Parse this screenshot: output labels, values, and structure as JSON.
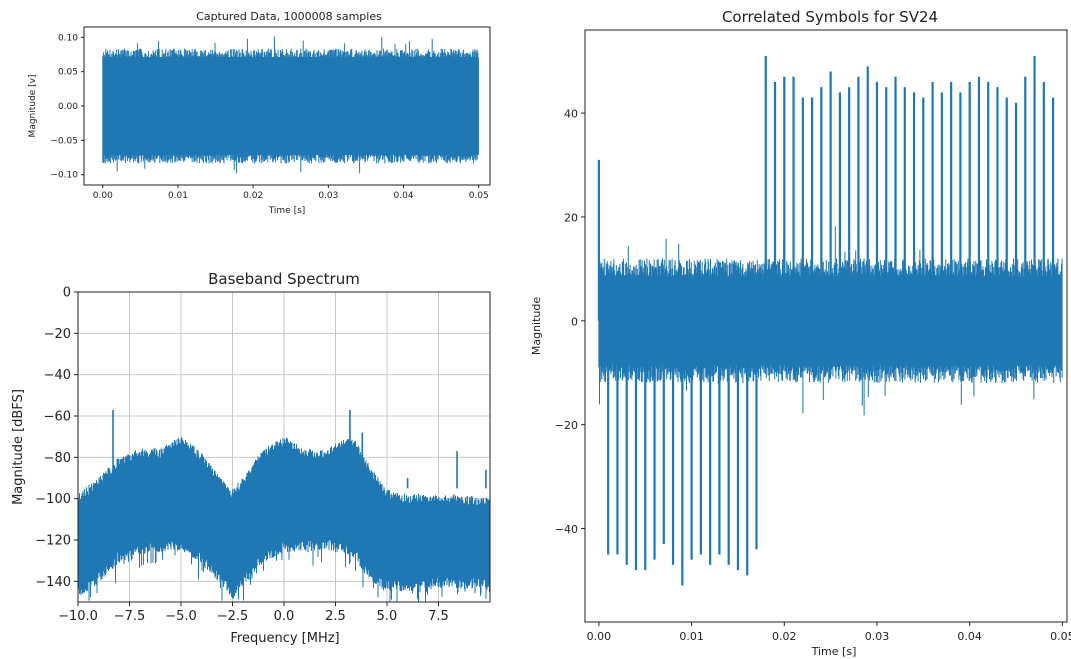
{
  "chart_data": [
    {
      "id": "captured",
      "type": "line",
      "title": "Captured Data, 1000008 samples",
      "xlabel": "Time [s]",
      "ylabel": "Magnitude [v]",
      "xlim": [
        -0.0025,
        0.0515
      ],
      "ylim": [
        -0.115,
        0.115
      ],
      "xticks": [
        0.0,
        0.01,
        0.02,
        0.03,
        0.04,
        0.05
      ],
      "xtick_labels": [
        "0.00",
        "0.01",
        "0.02",
        "0.03",
        "0.04",
        "0.05"
      ],
      "yticks": [
        0.1,
        0.05,
        0.0,
        -0.05,
        -0.1
      ],
      "ytick_labels": [
        "0.10",
        "0.05",
        "0.00",
        "−0.05",
        "−0.10"
      ],
      "grid": false,
      "color": "#1f77b4",
      "envelope": {
        "x_range": [
          0.0,
          0.05
        ],
        "typical_abs": 0.075,
        "peak_abs": 0.102
      }
    },
    {
      "id": "spectrum",
      "type": "line",
      "title": "Baseband Spectrum",
      "xlabel": "Frequency [MHz]",
      "ylabel": "Magnitude [dBFS]",
      "xlim": [
        -10.0,
        10.0
      ],
      "ylim": [
        -150,
        0
      ],
      "xticks": [
        -10.0,
        -7.5,
        -5.0,
        -2.5,
        0.0,
        2.5,
        5.0,
        7.5
      ],
      "xtick_labels": [
        "−10.0",
        "−7.5",
        "−5.0",
        "−2.5",
        "0.0",
        "2.5",
        "5.0",
        "7.5"
      ],
      "yticks": [
        0,
        -20,
        -40,
        -60,
        -80,
        -100,
        -120,
        -140
      ],
      "ytick_labels": [
        "0",
        "−20",
        "−40",
        "−60",
        "−80",
        "−100",
        "−120",
        "−140"
      ],
      "grid": true,
      "color": "#1f77b4",
      "upper_envelope": {
        "x": [
          -10.0,
          -9.0,
          -8.0,
          -7.0,
          -6.0,
          -5.0,
          -4.0,
          -3.0,
          -2.5,
          -2.0,
          -1.0,
          0.0,
          1.0,
          2.0,
          3.0,
          3.5,
          4.0,
          5.0,
          6.0,
          7.0,
          8.0,
          9.0,
          10.0
        ],
        "y": [
          -100,
          -92,
          -82,
          -78,
          -78,
          -72,
          -80,
          -93,
          -98,
          -92,
          -78,
          -72,
          -78,
          -79,
          -73,
          -74,
          -84,
          -98,
          -100,
          -100,
          -100,
          -101,
          -101
        ]
      },
      "lower_envelope": {
        "x": [
          -10.0,
          -9.0,
          -8.0,
          -7.0,
          -6.0,
          -5.0,
          -4.0,
          -3.0,
          -2.5,
          -2.0,
          -1.0,
          0.0,
          1.0,
          2.0,
          3.0,
          3.5,
          4.0,
          5.0,
          6.0,
          7.0,
          8.0,
          9.0,
          10.0
        ],
        "y": [
          -145,
          -138,
          -128,
          -124,
          -123,
          -122,
          -128,
          -140,
          -146,
          -140,
          -128,
          -123,
          -122,
          -122,
          -124,
          -126,
          -136,
          -142,
          -142,
          -141,
          -140,
          -141,
          -140
        ]
      },
      "spurs": [
        {
          "x": -8.3,
          "y": -57
        },
        {
          "x": -7.3,
          "y": -88
        },
        {
          "x": -5.8,
          "y": -88
        },
        {
          "x": -1.0,
          "y": -77
        },
        {
          "x": 3.2,
          "y": -57
        },
        {
          "x": 3.8,
          "y": -68
        },
        {
          "x": 4.1,
          "y": -92
        },
        {
          "x": 6.0,
          "y": -90
        },
        {
          "x": 7.6,
          "y": -95
        },
        {
          "x": 8.4,
          "y": -77
        },
        {
          "x": 9.8,
          "y": -86
        }
      ]
    },
    {
      "id": "correlated",
      "type": "line",
      "title": "Correlated Symbols for SV24",
      "xlabel": "Time [s]",
      "ylabel": "Magnitude",
      "xlim": [
        -0.0015,
        0.0505
      ],
      "ylim": [
        -58,
        56
      ],
      "xticks": [
        0.0,
        0.01,
        0.02,
        0.03,
        0.04,
        0.05
      ],
      "xtick_labels": [
        "0.00",
        "0.01",
        "0.02",
        "0.03",
        "0.04",
        "0.05"
      ],
      "yticks": [
        40,
        20,
        0,
        -20,
        -40
      ],
      "ytick_labels": [
        "40",
        "20",
        "0",
        "−20",
        "−40"
      ],
      "grid": false,
      "color": "#1f77b4",
      "noise_band": {
        "x_range": [
          0.0,
          0.05
        ],
        "typical_abs": 10,
        "peak_abs": 17
      },
      "peaks_x": [
        0.0,
        0.001,
        0.002,
        0.003,
        0.004,
        0.005,
        0.006,
        0.007,
        0.008,
        0.009,
        0.01,
        0.011,
        0.012,
        0.013,
        0.014,
        0.015,
        0.016,
        0.017,
        0.018,
        0.019,
        0.02,
        0.021,
        0.022,
        0.023,
        0.024,
        0.025,
        0.026,
        0.027,
        0.028,
        0.029,
        0.03,
        0.031,
        0.032,
        0.033,
        0.034,
        0.035,
        0.036,
        0.037,
        0.038,
        0.039,
        0.04,
        0.041,
        0.042,
        0.043,
        0.044,
        0.045,
        0.046,
        0.047,
        0.048,
        0.049
      ],
      "peaks_y": [
        31,
        -45,
        -45,
        -47,
        -48,
        -48,
        -46,
        -43,
        -47,
        -51,
        -46,
        -45,
        -47,
        -45,
        -47,
        -48,
        -49,
        -44,
        51,
        46,
        47,
        47,
        43,
        43,
        45,
        48,
        44,
        45,
        47,
        49,
        46,
        45,
        47,
        45,
        44,
        43,
        46,
        44,
        46,
        44,
        46,
        47,
        46,
        45,
        43,
        42,
        47,
        51,
        46,
        43
      ]
    }
  ]
}
